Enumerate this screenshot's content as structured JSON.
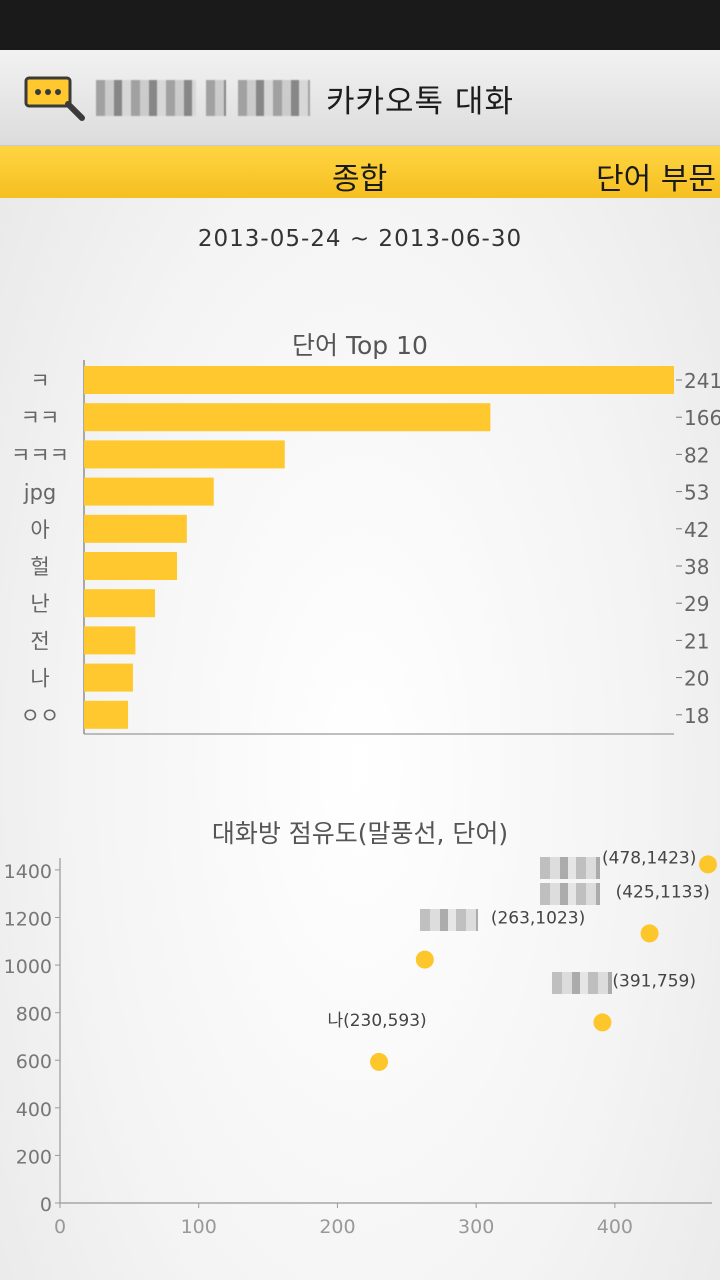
{
  "header": {
    "title": "카카오톡 대화"
  },
  "tabs": [
    {
      "label": "종합",
      "active": true
    },
    {
      "label": "단어 부문",
      "active": false
    }
  ],
  "date_range": "2013-05-24 ~ 2013-06-30",
  "colors": {
    "accent": "#fec82e",
    "bar": "#fec82e",
    "point": "#fdc62a"
  },
  "chart_data": [
    {
      "type": "bar",
      "orientation": "horizontal",
      "title": "단어 Top 10",
      "categories": [
        "ㅋ",
        "ㅋㅋ",
        "ㅋㅋㅋ",
        "jpg",
        "아",
        "헐",
        "난",
        "전",
        "나",
        "ㅇㅇ"
      ],
      "values": [
        241,
        166,
        82,
        53,
        42,
        38,
        29,
        21,
        20,
        18
      ],
      "data_labels": [
        "241",
        "166",
        "82",
        "53",
        "42",
        "38",
        "29",
        "21",
        "20",
        "18"
      ],
      "xlim": [
        0,
        241
      ]
    },
    {
      "type": "scatter",
      "title": "대화방 점유도(말풍선, 단어)",
      "xlim": [
        0,
        470
      ],
      "ylim": [
        0,
        1450
      ],
      "x_ticks": [
        0,
        100,
        200,
        300,
        400
      ],
      "y_ticks": [
        0,
        200,
        400,
        600,
        800,
        1000,
        1200,
        1400
      ],
      "grid": false,
      "points": [
        {
          "name": "나",
          "x": 230,
          "y": 593,
          "label": "나(230,593)"
        },
        {
          "name": "",
          "x": 263,
          "y": 1023,
          "label": "(263,1023)"
        },
        {
          "name": "",
          "x": 391,
          "y": 759,
          "label": "(391,759)"
        },
        {
          "name": "",
          "x": 425,
          "y": 1133,
          "label": "(425,1133)"
        },
        {
          "name": "",
          "x": 478,
          "y": 1423,
          "label": "(478,1423)"
        }
      ]
    }
  ]
}
